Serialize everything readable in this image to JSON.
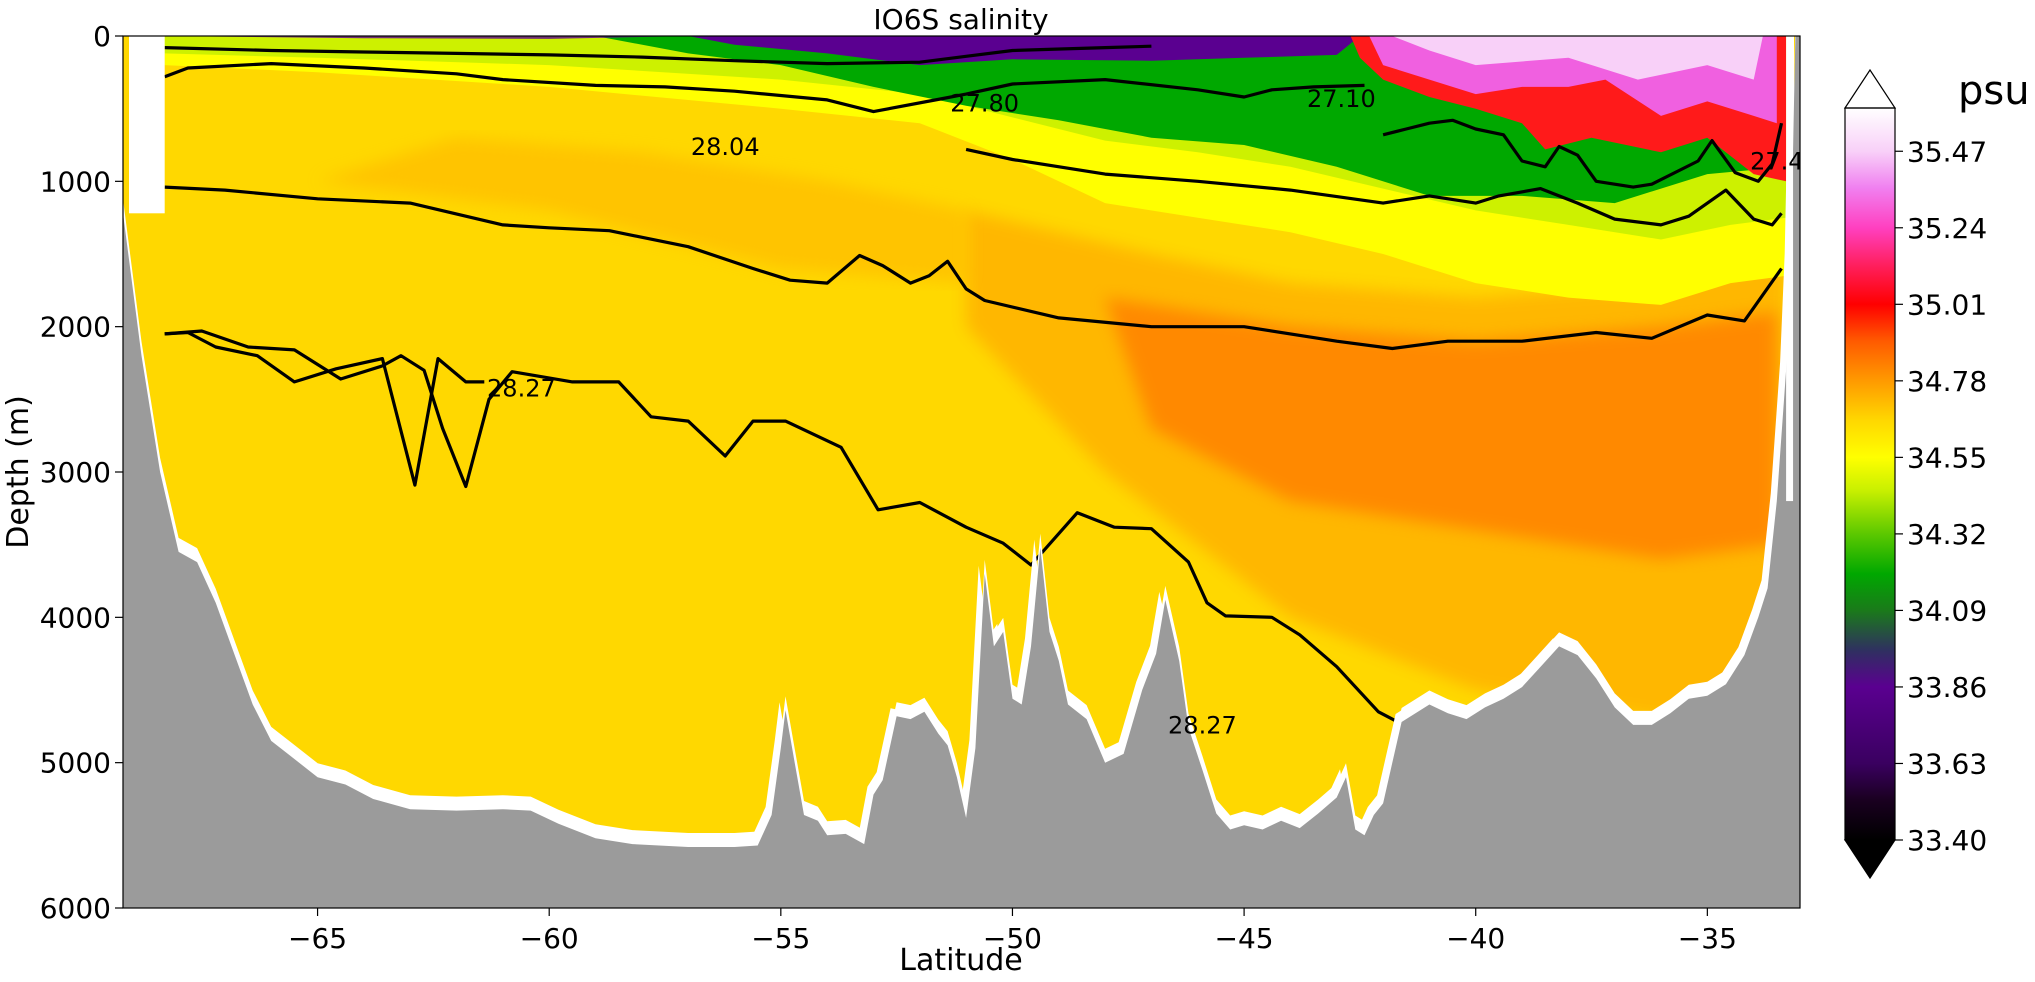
{
  "chart_data": {
    "type": "contour-section",
    "title": "IO6S salinity",
    "xlabel": "Latitude",
    "ylabel": "Depth (m)",
    "xlim": [
      -69.2,
      -33.0
    ],
    "ylim": [
      6000,
      0
    ],
    "xticks": [
      -65,
      -60,
      -55,
      -50,
      -45,
      -40,
      -35
    ],
    "xtick_labels": [
      "−65",
      "−60",
      "−55",
      "−50",
      "−45",
      "−40",
      "−35"
    ],
    "yticks": [
      0,
      1000,
      2000,
      3000,
      4000,
      5000,
      6000
    ],
    "ytick_labels": [
      "0",
      "1000",
      "2000",
      "3000",
      "4000",
      "5000",
      "6000"
    ],
    "colorbar": {
      "units": "psu",
      "min": 33.4,
      "max": 35.6,
      "ticks": [
        33.4,
        33.63,
        33.86,
        34.09,
        34.32,
        34.55,
        34.78,
        35.01,
        35.24,
        35.47
      ],
      "tick_labels": [
        "33.40",
        "33.63",
        "33.86",
        "34.09",
        "34.32",
        "34.55",
        "34.78",
        "35.01",
        "35.24",
        "35.47"
      ],
      "extend": "both",
      "colormap": [
        {
          "value": 33.4,
          "color": "#000000"
        },
        {
          "value": 33.52,
          "color": "#1a0020"
        },
        {
          "value": 33.63,
          "color": "#3a0060"
        },
        {
          "value": 33.86,
          "color": "#5a0090"
        },
        {
          "value": 33.97,
          "color": "#2f3060"
        },
        {
          "value": 34.09,
          "color": "#1a7a1a"
        },
        {
          "value": 34.2,
          "color": "#00a800"
        },
        {
          "value": 34.32,
          "color": "#5cc800"
        },
        {
          "value": 34.45,
          "color": "#c8f000"
        },
        {
          "value": 34.55,
          "color": "#ffff00"
        },
        {
          "value": 34.66,
          "color": "#ffd800"
        },
        {
          "value": 34.78,
          "color": "#ff9a00"
        },
        {
          "value": 34.9,
          "color": "#ff5a00"
        },
        {
          "value": 35.01,
          "color": "#ff0000"
        },
        {
          "value": 35.13,
          "color": "#ff2060"
        },
        {
          "value": 35.24,
          "color": "#ff40c0"
        },
        {
          "value": 35.36,
          "color": "#f080f0"
        },
        {
          "value": 35.47,
          "color": "#f8d0f8"
        },
        {
          "value": 35.6,
          "color": "#ffffff"
        }
      ]
    },
    "colors": {
      "bathymetry": "#9b9b9b",
      "surface_fresh": "#5a0090",
      "green_layer": "#00a800",
      "yellow": "#ffff00",
      "gold": "#ffd800",
      "orange_light": "#ffb400",
      "orange_deep": "#ff7a00",
      "red": "#ff1a1a",
      "pink": "#f060e0",
      "contour_line": "#000000"
    },
    "contour_labels": [
      {
        "text": "27.80",
        "x": -50.6,
        "y": 520
      },
      {
        "text": "28.04",
        "x": -56.2,
        "y": 820
      },
      {
        "text": "27.10",
        "x": -42.9,
        "y": 490
      },
      {
        "text": "27.4",
        "x": -33.5,
        "y": 920
      },
      {
        "text": "28.27",
        "x": -60.6,
        "y": 2480
      },
      {
        "text": "28.27",
        "x": -45.9,
        "y": 4800
      }
    ],
    "contours": [
      {
        "level": 26.9,
        "points": [
          [
            -68.3,
            80
          ],
          [
            -66,
            100
          ],
          [
            -64,
            110
          ],
          [
            -62,
            120
          ],
          [
            -60,
            130
          ],
          [
            -58,
            145
          ],
          [
            -56,
            170
          ],
          [
            -54,
            190
          ],
          [
            -52,
            180
          ],
          [
            -51,
            140
          ],
          [
            -50,
            100
          ],
          [
            -48,
            80
          ],
          [
            -47,
            70
          ]
        ]
      },
      {
        "level": 27.1,
        "points": [
          [
            -68.3,
            280
          ],
          [
            -67.8,
            220
          ],
          [
            -66,
            190
          ],
          [
            -64,
            220
          ],
          [
            -62,
            260
          ],
          [
            -61,
            300
          ],
          [
            -59,
            340
          ],
          [
            -57.5,
            350
          ],
          [
            -56,
            380
          ],
          [
            -54,
            440
          ],
          [
            -53,
            520
          ],
          [
            -51.5,
            430
          ],
          [
            -51,
            400
          ],
          [
            -50,
            330
          ],
          [
            -48,
            300
          ],
          [
            -46,
            370
          ],
          [
            -45,
            420
          ],
          [
            -44.4,
            370
          ],
          [
            -43.5,
            350
          ],
          [
            -42.4,
            340
          ]
        ]
      },
      {
        "level": 27.4,
        "points": [
          [
            -42.0,
            680
          ],
          [
            -41.5,
            640
          ],
          [
            -41,
            600
          ],
          [
            -40.5,
            580
          ],
          [
            -40,
            640
          ],
          [
            -39.4,
            680
          ],
          [
            -39.0,
            860
          ],
          [
            -38.5,
            900
          ],
          [
            -38.2,
            760
          ],
          [
            -37.8,
            820
          ],
          [
            -37.4,
            1000
          ],
          [
            -36.6,
            1040
          ],
          [
            -36.2,
            1020
          ],
          [
            -35.2,
            860
          ],
          [
            -34.9,
            720
          ],
          [
            -34.4,
            940
          ],
          [
            -33.9,
            1000
          ],
          [
            -33.6,
            880
          ],
          [
            -33.4,
            600
          ]
        ]
      },
      {
        "level": 27.8,
        "points": [
          [
            -51.0,
            780
          ],
          [
            -50,
            850
          ],
          [
            -48,
            950
          ],
          [
            -46,
            1000
          ],
          [
            -44,
            1060
          ],
          [
            -42,
            1150
          ],
          [
            -41,
            1100
          ],
          [
            -40,
            1150
          ],
          [
            -39.5,
            1100
          ],
          [
            -38.6,
            1050
          ],
          [
            -37.8,
            1150
          ],
          [
            -37,
            1260
          ],
          [
            -36,
            1300
          ],
          [
            -35.4,
            1240
          ],
          [
            -34.6,
            1060
          ],
          [
            -34,
            1260
          ],
          [
            -33.6,
            1300
          ],
          [
            -33.4,
            1220
          ]
        ]
      },
      {
        "level": 28.04,
        "points": [
          [
            -68.3,
            1040
          ],
          [
            -67,
            1060
          ],
          [
            -65,
            1120
          ],
          [
            -63,
            1150
          ],
          [
            -61,
            1300
          ],
          [
            -60,
            1320
          ],
          [
            -58.7,
            1340
          ],
          [
            -57,
            1450
          ],
          [
            -55.6,
            1600
          ],
          [
            -54.8,
            1680
          ],
          [
            -54,
            1700
          ],
          [
            -53.3,
            1510
          ],
          [
            -52.8,
            1580
          ],
          [
            -52.2,
            1700
          ],
          [
            -51.8,
            1650
          ],
          [
            -51.4,
            1550
          ],
          [
            -51.0,
            1740
          ],
          [
            -50.6,
            1820
          ],
          [
            -49,
            1940
          ],
          [
            -47,
            2000
          ],
          [
            -45,
            2000
          ],
          [
            -43,
            2100
          ],
          [
            -41.8,
            2150
          ],
          [
            -40.6,
            2100
          ],
          [
            -39,
            2100
          ],
          [
            -37.4,
            2040
          ],
          [
            -36.2,
            2080
          ],
          [
            -35,
            1920
          ],
          [
            -34.2,
            1960
          ],
          [
            -33.4,
            1600
          ]
        ]
      },
      {
        "level": 28.27,
        "points": [
          [
            -68.3,
            2050
          ],
          [
            -67.5,
            2030
          ],
          [
            -66.5,
            2140
          ],
          [
            -65.5,
            2160
          ],
          [
            -64.5,
            2360
          ],
          [
            -63.6,
            2270
          ],
          [
            -63.2,
            2200
          ],
          [
            -62.7,
            2300
          ],
          [
            -62.3,
            2700
          ],
          [
            -61.8,
            3100
          ],
          [
            -61.3,
            2500
          ],
          [
            -60.8,
            2310
          ],
          [
            -59.5,
            2380
          ],
          [
            -58.5,
            2380
          ],
          [
            -57.8,
            2620
          ],
          [
            -57,
            2650
          ],
          [
            -56.2,
            2890
          ],
          [
            -55.6,
            2650
          ],
          [
            -54.9,
            2650
          ],
          [
            -53.7,
            2830
          ],
          [
            -52.9,
            3260
          ],
          [
            -52,
            3210
          ],
          [
            -51,
            3380
          ],
          [
            -50.2,
            3490
          ],
          [
            -49.6,
            3640
          ],
          [
            -48.6,
            3280
          ],
          [
            -47.8,
            3380
          ],
          [
            -47,
            3390
          ],
          [
            -46.2,
            3620
          ],
          [
            -45.8,
            3900
          ],
          [
            -45.4,
            3990
          ],
          [
            -44.4,
            4000
          ],
          [
            -43.8,
            4120
          ],
          [
            -43.0,
            4340
          ],
          [
            -42.1,
            4650
          ],
          [
            -41.2,
            4800
          ],
          [
            -40.6,
            4720
          ],
          [
            -39.6,
            4700
          ],
          [
            -39.0,
            4760
          ],
          [
            -38.4,
            4840
          ],
          [
            -37.8,
            4700
          ],
          [
            -37,
            4720
          ],
          [
            -36.2,
            4870
          ],
          [
            -35.6,
            4770
          ],
          [
            -35.0,
            4580
          ],
          [
            -34.2,
            4600
          ],
          [
            -33.6,
            4590
          ]
        ]
      },
      {
        "level": 28.27,
        "points": [
          [
            -68.3,
            2050
          ],
          [
            -67.8,
            2040
          ],
          [
            -67.2,
            2140
          ],
          [
            -66.3,
            2200
          ],
          [
            -65.5,
            2380
          ],
          [
            -64.6,
            2290
          ],
          [
            -63.6,
            2220
          ],
          [
            -62.9,
            3090
          ],
          [
            -62.4,
            2220
          ],
          [
            -61.8,
            2380
          ],
          [
            -61.4,
            2380
          ]
        ]
      }
    ],
    "bathymetry_profile": [
      [
        -69.2,
        1220
      ],
      [
        -68.8,
        2200
      ],
      [
        -68.4,
        3000
      ],
      [
        -68.0,
        3550
      ],
      [
        -67.6,
        3620
      ],
      [
        -67.2,
        3900
      ],
      [
        -66.8,
        4250
      ],
      [
        -66.4,
        4600
      ],
      [
        -66.0,
        4850
      ],
      [
        -65.6,
        4950
      ],
      [
        -65.0,
        5100
      ],
      [
        -64.4,
        5150
      ],
      [
        -63.8,
        5250
      ],
      [
        -63.0,
        5320
      ],
      [
        -62.0,
        5330
      ],
      [
        -61.0,
        5320
      ],
      [
        -60.4,
        5330
      ],
      [
        -59.8,
        5420
      ],
      [
        -59.0,
        5520
      ],
      [
        -58.2,
        5560
      ],
      [
        -57.0,
        5580
      ],
      [
        -56.0,
        5580
      ],
      [
        -55.5,
        5570
      ],
      [
        -55.2,
        5360
      ],
      [
        -55.0,
        4900
      ],
      [
        -54.9,
        4640
      ],
      [
        -54.7,
        5000
      ],
      [
        -54.5,
        5360
      ],
      [
        -54.2,
        5400
      ],
      [
        -54.0,
        5500
      ],
      [
        -53.6,
        5490
      ],
      [
        -53.2,
        5560
      ],
      [
        -53.0,
        5220
      ],
      [
        -52.8,
        5120
      ],
      [
        -52.5,
        4680
      ],
      [
        -52.2,
        4700
      ],
      [
        -51.9,
        4650
      ],
      [
        -51.6,
        4800
      ],
      [
        -51.4,
        4880
      ],
      [
        -51.2,
        5100
      ],
      [
        -51.0,
        5380
      ],
      [
        -50.8,
        4900
      ],
      [
        -50.6,
        3700
      ],
      [
        -50.4,
        4200
      ],
      [
        -50.2,
        4100
      ],
      [
        -50.0,
        4560
      ],
      [
        -49.8,
        4600
      ],
      [
        -49.6,
        4200
      ],
      [
        -49.4,
        3520
      ],
      [
        -49.2,
        4100
      ],
      [
        -49.0,
        4300
      ],
      [
        -48.8,
        4600
      ],
      [
        -48.4,
        4700
      ],
      [
        -48.0,
        5000
      ],
      [
        -47.6,
        4940
      ],
      [
        -47.2,
        4500
      ],
      [
        -46.9,
        4250
      ],
      [
        -46.7,
        3880
      ],
      [
        -46.4,
        4300
      ],
      [
        -46.2,
        4760
      ],
      [
        -45.9,
        5050
      ],
      [
        -45.6,
        5350
      ],
      [
        -45.3,
        5460
      ],
      [
        -45.0,
        5430
      ],
      [
        -44.6,
        5460
      ],
      [
        -44.2,
        5400
      ],
      [
        -43.8,
        5450
      ],
      [
        -43.4,
        5350
      ],
      [
        -43.0,
        5240
      ],
      [
        -42.8,
        5100
      ],
      [
        -42.6,
        5460
      ],
      [
        -42.4,
        5500
      ],
      [
        -42.2,
        5360
      ],
      [
        -42.0,
        5280
      ],
      [
        -41.8,
        5000
      ],
      [
        -41.6,
        4720
      ],
      [
        -41.3,
        4660
      ],
      [
        -41.0,
        4600
      ],
      [
        -40.6,
        4660
      ],
      [
        -40.2,
        4700
      ],
      [
        -39.8,
        4620
      ],
      [
        -39.4,
        4560
      ],
      [
        -39.0,
        4480
      ],
      [
        -38.6,
        4340
      ],
      [
        -38.2,
        4200
      ],
      [
        -37.8,
        4260
      ],
      [
        -37.4,
        4420
      ],
      [
        -37.0,
        4620
      ],
      [
        -36.6,
        4740
      ],
      [
        -36.2,
        4740
      ],
      [
        -35.8,
        4660
      ],
      [
        -35.4,
        4560
      ],
      [
        -35.0,
        4540
      ],
      [
        -34.6,
        4460
      ],
      [
        -34.2,
        4260
      ],
      [
        -33.9,
        4000
      ],
      [
        -33.7,
        3800
      ],
      [
        -33.5,
        3200
      ],
      [
        -33.3,
        2300
      ],
      [
        -33.2,
        1550
      ],
      [
        -33.1,
        0
      ],
      [
        -33.0,
        0
      ]
    ]
  }
}
